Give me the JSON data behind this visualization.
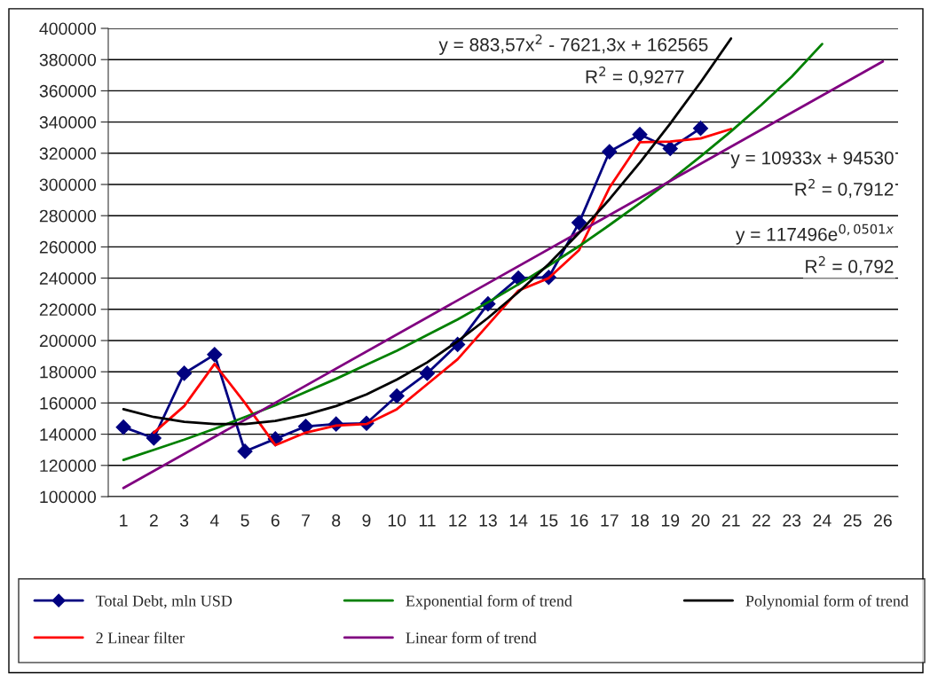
{
  "chart_data": {
    "type": "line",
    "categories": [
      "1",
      "2",
      "3",
      "4",
      "5",
      "6",
      "7",
      "8",
      "9",
      "10",
      "11",
      "12",
      "13",
      "14",
      "15",
      "16",
      "17",
      "18",
      "19",
      "20",
      "21",
      "22",
      "23",
      "24",
      "25",
      "26"
    ],
    "series": [
      {
        "name": "Total Debt, mln USD",
        "color": "#000080",
        "marker": "diamond",
        "values": [
          144500,
          137500,
          179000,
          191000,
          129000,
          137000,
          145000,
          146500,
          147000,
          164500,
          179000,
          197500,
          223500,
          240000,
          240500,
          275500,
          321000,
          332000,
          323000,
          336000,
          null,
          null,
          null,
          null,
          null,
          null
        ]
      },
      {
        "name": "2 Linear filter",
        "color": "#ff0000",
        "values": [
          null,
          141000,
          158000,
          185000,
          160000,
          133000,
          141000,
          145500,
          146500,
          156000,
          172000,
          188000,
          210000,
          232000,
          240000,
          258000,
          298000,
          327000,
          327500,
          329500,
          335500,
          null,
          null,
          null,
          null,
          null
        ]
      },
      {
        "name": "Exponential form of trend",
        "color": "#008000",
        "values": [
          123500,
          130000,
          136500,
          143500,
          151000,
          158500,
          167000,
          175500,
          184500,
          193500,
          203500,
          213500,
          224500,
          236000,
          248000,
          260500,
          274000,
          288000,
          302500,
          318000,
          334000,
          351000,
          369000,
          390000,
          null,
          null
        ]
      },
      {
        "name": "Linear form of trend",
        "color": "#800080",
        "x": [
          "1",
          "26"
        ],
        "values": [
          105500,
          378800
        ]
      },
      {
        "name": "Polynomial form of trend",
        "color": "#000000",
        "values": [
          156000,
          151000,
          148000,
          146500,
          146500,
          148500,
          152500,
          158000,
          165500,
          175000,
          186000,
          199500,
          214500,
          231000,
          249000,
          269000,
          290500,
          314000,
          339000,
          365500,
          393500,
          null,
          null,
          null,
          null,
          null
        ]
      }
    ],
    "ylim": [
      100000,
      400000
    ],
    "yticks": [
      100000,
      120000,
      140000,
      160000,
      180000,
      200000,
      220000,
      240000,
      260000,
      280000,
      300000,
      320000,
      340000,
      360000,
      380000,
      400000
    ],
    "grid": "y",
    "legend": "bottom",
    "line_style": "solid",
    "annotations": [
      "y = 883,57x$^{2}$ - 7621,3x + 162565",
      "R$^{2}$ = 0,9277",
      "y = 117496e$^{0,0501x}$",
      "R$^{2}$ = 0,792",
      "y = 10933x + 94530",
      "R$^{2}$ = 0,7912"
    ]
  }
}
